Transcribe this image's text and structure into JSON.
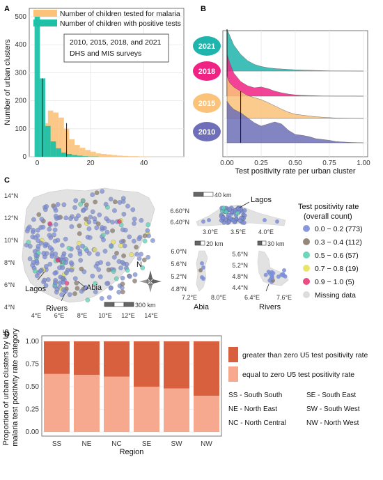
{
  "panels": {
    "A": {
      "label": "A",
      "legend": [
        "Number of children tested for malaria",
        "Number of children with positive tests"
      ],
      "annotation": [
        "2010, 2015, 2018, and 2021",
        "DHS and MIS surveys"
      ],
      "xlabel": "",
      "ylabel": "Number of urban clusters",
      "x_ticks": [
        "0",
        "20",
        "40"
      ],
      "y_ticks": [
        "0",
        "100",
        "200",
        "300",
        "400",
        "500"
      ]
    },
    "B": {
      "label": "B",
      "xlabel": "Test positivity rate per urban cluster",
      "x_ticks": [
        "0.00",
        "0.25",
        "0.50",
        "0.75",
        "1.00"
      ],
      "years": [
        "2021",
        "2018",
        "2015",
        "2010"
      ]
    },
    "C": {
      "label": "C",
      "lat_ticks": [
        "14°N",
        "12°N",
        "10°N",
        "8°N",
        "6°N",
        "4°N"
      ],
      "lon_ticks": [
        "4°E",
        "6°E",
        "8°E",
        "10°E",
        "12°E",
        "14°E"
      ],
      "city_labels": [
        "Lagos",
        "Abia",
        "Rivers"
      ],
      "scale_main": "300 km",
      "compass": "N",
      "lagos_inset": {
        "scale": "40 km",
        "label": "Lagos",
        "lat_ticks": [
          "6.60°N",
          "6.40°N"
        ],
        "lon_ticks": [
          "3.0°E",
          "3.5°E",
          "4.0°E"
        ]
      },
      "abia_inset": {
        "scale": "20 km",
        "label": "Abia",
        "lat_ticks": [
          "6.0°N",
          "5.6°N",
          "5.2°N",
          "4.8°N"
        ],
        "lon_ticks": [
          "7.2°E",
          "8.0°E"
        ]
      },
      "rivers_inset": {
        "scale": "30 km",
        "label": "Rivers",
        "lat_ticks": [
          "5.6°N",
          "5.2°N",
          "4.8°N",
          "4.4°N"
        ],
        "lon_ticks": [
          "6.4°E",
          "7.6°E"
        ]
      },
      "legend_title": [
        "Test positivity rate",
        "(overall count)"
      ],
      "legend": [
        {
          "label": "0.0 − 0.2 (773)",
          "color": "#7d8ed6"
        },
        {
          "label": "0.3 − 0.4 (112)",
          "color": "#8a7a6a"
        },
        {
          "label": "0.5 − 0.6 (57)",
          "color": "#5ed1b4"
        },
        {
          "label": "0.7 − 0.8 (19)",
          "color": "#e6e25a"
        },
        {
          "label": "0.9 − 1.0 (5)",
          "color": "#e63a77"
        },
        {
          "label": "Missing data",
          "color": "#d9d9d9"
        }
      ]
    },
    "D": {
      "label": "D",
      "xlabel": "Region",
      "ylabel": [
        "Proportion of urban clusters by U5",
        "malaria test positivity rate category"
      ],
      "y_ticks": [
        "0.00",
        "0.25",
        "0.50",
        "0.75",
        "1.00"
      ],
      "legend": [
        {
          "label": "greater than zero U5 test positivity rate",
          "color": "#d9603f"
        },
        {
          "label": "equal to zero U5 test positivity rate",
          "color": "#f7a98f"
        }
      ],
      "region_key": [
        "SS - South South",
        "SE - South East",
        "NE - North East",
        "SW - South West",
        "NC - North Central",
        "NW - North West"
      ]
    }
  },
  "chart_data": [
    {
      "type": "bar",
      "panel": "A",
      "bin_width": 2,
      "x": [
        0,
        2,
        4,
        6,
        8,
        10,
        12,
        14,
        16,
        18,
        20,
        22,
        24,
        26,
        28,
        30,
        32,
        34,
        36,
        38,
        40,
        42,
        44,
        46,
        48,
        50
      ],
      "series": [
        {
          "name": "Number of children tested for malaria",
          "color": "#fbc27a",
          "values": [
            8,
            120,
            165,
            158,
            140,
            100,
            62,
            42,
            32,
            24,
            18,
            12,
            10,
            8,
            6,
            4,
            3,
            2,
            2,
            1,
            1,
            0,
            0,
            0,
            0,
            0
          ]
        },
        {
          "name": "Number of children with positive tests",
          "color": "#1ec1a8",
          "values": [
            500,
            280,
            110,
            55,
            30,
            15,
            10,
            6,
            4,
            2,
            1,
            1,
            0,
            0,
            0,
            0,
            0,
            0,
            0,
            0,
            0,
            0,
            0,
            0,
            0,
            0
          ]
        }
      ],
      "reference_lines": [
        2,
        11
      ],
      "xlim": [
        -3,
        55
      ],
      "ylim": [
        0,
        500
      ]
    },
    {
      "type": "area",
      "panel": "B",
      "x": [
        0.0,
        0.02,
        0.05,
        0.1,
        0.15,
        0.2,
        0.25,
        0.3,
        0.35,
        0.4,
        0.45,
        0.5,
        0.55,
        0.6,
        0.65,
        0.7,
        0.75,
        0.8,
        0.9,
        1.0
      ],
      "series": [
        {
          "name": "2021",
          "color": "#1fb5ad",
          "median": 0.0,
          "values": [
            1.0,
            0.85,
            0.62,
            0.4,
            0.25,
            0.16,
            0.11,
            0.08,
            0.06,
            0.05,
            0.04,
            0.03,
            0.025,
            0.02,
            0.015,
            0.01,
            0.005,
            0.003,
            0.001,
            0.0
          ]
        },
        {
          "name": "2018",
          "color": "#f02385",
          "median": 0.0,
          "values": [
            1.0,
            0.8,
            0.55,
            0.35,
            0.25,
            0.2,
            0.22,
            0.18,
            0.12,
            0.08,
            0.05,
            0.03,
            0.02,
            0.015,
            0.01,
            0.005,
            0.003,
            0.002,
            0.001,
            0.0
          ]
        },
        {
          "name": "2015",
          "color": "#fbc27a",
          "median": 0.1,
          "values": [
            1.0,
            0.85,
            0.75,
            0.65,
            0.55,
            0.5,
            0.45,
            0.38,
            0.3,
            0.22,
            0.15,
            0.1,
            0.08,
            0.06,
            0.04,
            0.03,
            0.02,
            0.01,
            0.005,
            0.0
          ]
        },
        {
          "name": "2010",
          "color": "#6e6fb8",
          "median": 0.1,
          "values": [
            1.0,
            0.9,
            0.8,
            0.72,
            0.6,
            0.48,
            0.4,
            0.45,
            0.5,
            0.45,
            0.3,
            0.2,
            0.18,
            0.15,
            0.1,
            0.08,
            0.06,
            0.03,
            0.01,
            0.0
          ]
        }
      ],
      "xlim": [
        0,
        1
      ]
    },
    {
      "type": "bar",
      "panel": "D",
      "stacked": true,
      "categories": [
        "SS",
        "NE",
        "NC",
        "SE",
        "SW",
        "NW"
      ],
      "series": [
        {
          "name": "equal to zero U5 test positivity rate",
          "color": "#f7a98f",
          "values": [
            0.64,
            0.63,
            0.61,
            0.5,
            0.48,
            0.4
          ]
        },
        {
          "name": "greater than zero U5 test positivity rate",
          "color": "#d9603f",
          "values": [
            0.36,
            0.37,
            0.39,
            0.5,
            0.52,
            0.6
          ]
        }
      ],
      "ylim": [
        0,
        1
      ]
    }
  ]
}
